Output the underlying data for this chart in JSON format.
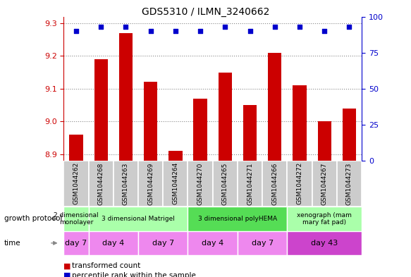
{
  "title": "GDS5310 / ILMN_3240662",
  "samples": [
    "GSM1044262",
    "GSM1044268",
    "GSM1044263",
    "GSM1044269",
    "GSM1044264",
    "GSM1044270",
    "GSM1044265",
    "GSM1044271",
    "GSM1044266",
    "GSM1044272",
    "GSM1044267",
    "GSM1044273"
  ],
  "transformed_counts": [
    8.96,
    9.19,
    9.27,
    9.12,
    8.91,
    9.07,
    9.15,
    9.05,
    9.21,
    9.11,
    9.0,
    9.04
  ],
  "percentile_ranks": [
    90,
    93,
    93,
    90,
    90,
    90,
    93,
    90,
    93,
    93,
    90,
    93
  ],
  "ylim_left": [
    8.88,
    9.32
  ],
  "yticks_left": [
    8.9,
    9.0,
    9.1,
    9.2,
    9.3
  ],
  "ylim_right": [
    0,
    100
  ],
  "yticks_right": [
    0,
    25,
    50,
    75,
    100
  ],
  "bar_color": "#cc0000",
  "dot_color": "#0000cc",
  "bar_bottom": 8.88,
  "growth_protocol_groups": [
    {
      "label": "2 dimensional\nmonolayer",
      "start": 0,
      "end": 1,
      "color": "#aaffaa"
    },
    {
      "label": "3 dimensional Matrigel",
      "start": 1,
      "end": 5,
      "color": "#aaffaa"
    },
    {
      "label": "3 dimensional polyHEMA",
      "start": 5,
      "end": 9,
      "color": "#55dd55"
    },
    {
      "label": "xenograph (mam\nmary fat pad)",
      "start": 9,
      "end": 12,
      "color": "#aaffaa"
    }
  ],
  "time_groups": [
    {
      "label": "day 7",
      "start": 0,
      "end": 1,
      "color": "#ee88ee"
    },
    {
      "label": "day 4",
      "start": 1,
      "end": 3,
      "color": "#ee88ee"
    },
    {
      "label": "day 7",
      "start": 3,
      "end": 5,
      "color": "#ee88ee"
    },
    {
      "label": "day 4",
      "start": 5,
      "end": 7,
      "color": "#ee88ee"
    },
    {
      "label": "day 7",
      "start": 7,
      "end": 9,
      "color": "#ee88ee"
    },
    {
      "label": "day 43",
      "start": 9,
      "end": 12,
      "color": "#cc44cc"
    }
  ],
  "left_axis_color": "#cc0000",
  "right_axis_color": "#0000cc",
  "grid_color": "#888888",
  "plot_bg": "#ffffff",
  "fig_bg": "#ffffff",
  "gsm_row_color": "#cccccc",
  "arrow_color": "#888888"
}
